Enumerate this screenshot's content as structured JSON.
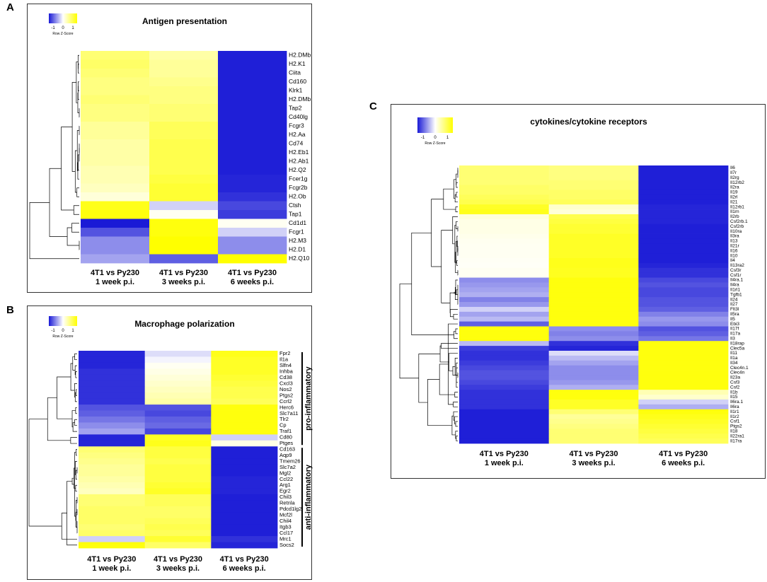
{
  "colors": {
    "low": "#1a1ad6",
    "mid": "#ffffff",
    "high": "#ffff00",
    "tree": "#000000"
  },
  "panels": [
    {
      "letter": "A"
    },
    {
      "letter": "B"
    },
    {
      "letter": "C"
    }
  ],
  "chart_data": [
    {
      "panel": "A",
      "type": "heatmap",
      "title": "Antigen presentation",
      "legend": {
        "ticks": [
          "-1",
          "0",
          "1"
        ],
        "label": "Row Z-Score"
      },
      "columns": [
        "4T1 vs Py230|1 week p.i.",
        "4T1 vs Py230|3 weeks p.i.",
        "4T1 vs Py230|6 weeks p.i."
      ],
      "rows": [
        "H2.DMb",
        "H2.K1",
        "Ciita",
        "Cd160",
        "Klrk1",
        "H2.DMb",
        "Tap2",
        "Cd40lg",
        "Fcgr3",
        "H2.Aa",
        "Cd74",
        "H2.Eb1",
        "H2.Ab1",
        "H2.Q2",
        "Fcer1g",
        "Fcgr2b",
        "H2.Ob",
        "Ctsh",
        "Tap1",
        "Cd1d1",
        "Fcgr1",
        "H2.M3",
        "H2.D1",
        "H2.Q10"
      ],
      "values": [
        [
          0.55,
          0.35,
          -0.98
        ],
        [
          0.6,
          0.4,
          -0.98
        ],
        [
          0.55,
          0.4,
          -0.98
        ],
        [
          0.5,
          0.45,
          -0.98
        ],
        [
          0.5,
          0.5,
          -0.98
        ],
        [
          0.55,
          0.5,
          -0.98
        ],
        [
          0.5,
          0.55,
          -0.98
        ],
        [
          0.5,
          0.55,
          -0.98
        ],
        [
          0.4,
          0.65,
          -0.98
        ],
        [
          0.4,
          0.65,
          -0.98
        ],
        [
          0.35,
          0.7,
          -0.98
        ],
        [
          0.35,
          0.7,
          -0.98
        ],
        [
          0.35,
          0.7,
          -0.98
        ],
        [
          0.3,
          0.7,
          -0.98
        ],
        [
          0.3,
          0.75,
          -0.95
        ],
        [
          0.25,
          0.8,
          -0.95
        ],
        [
          0.15,
          0.8,
          -0.9
        ],
        [
          0.9,
          -0.2,
          -0.8
        ],
        [
          0.95,
          0.05,
          -0.85
        ],
        [
          -1.0,
          0.95,
          0.05
        ],
        [
          -0.75,
          0.95,
          -0.2
        ],
        [
          -0.5,
          1.0,
          -0.5
        ],
        [
          -0.5,
          1.0,
          -0.5
        ],
        [
          -0.4,
          -0.7,
          1.0
        ]
      ]
    },
    {
      "panel": "B",
      "type": "heatmap",
      "title": "Macrophage polarization",
      "legend": {
        "ticks": [
          "-1",
          "0",
          "1"
        ],
        "label": "Row Z-Score"
      },
      "columns": [
        "4T1 vs Py230|1 week p.i.",
        "4T1 vs Py230|3 weeks p.i.",
        "4T1 vs Py230|6 weeks p.i."
      ],
      "rows": [
        "Fpr2",
        "Il1a",
        "Slfn4",
        "Inhba",
        "Cd38",
        "Cxcl3",
        "Nos2",
        "Ptgs2",
        "Ccrl2",
        "Herc6",
        "Slc7a11",
        "Tlr2",
        "Cp",
        "Traf1",
        "Cd80",
        "Ptges",
        "Cd163",
        "Aqp9",
        "Tmem26",
        "Slc7a2",
        "Mgl2",
        "Ccl22",
        "Arg1",
        "Egr2",
        "Chil3",
        "Retnla",
        "Pdcd1lg2",
        "Mcf2l",
        "Chil4",
        "Itgb3",
        "Ccl17",
        "Mrc1",
        "Socs2"
      ],
      "values": [
        [
          -0.95,
          -0.15,
          0.9
        ],
        [
          -0.95,
          -0.05,
          0.85
        ],
        [
          -0.95,
          0.05,
          0.85
        ],
        [
          -0.9,
          0.1,
          0.85
        ],
        [
          -0.9,
          0.15,
          0.8
        ],
        [
          -0.9,
          0.2,
          0.75
        ],
        [
          -0.9,
          0.25,
          0.7
        ],
        [
          -0.9,
          0.3,
          0.7
        ],
        [
          -0.9,
          0.35,
          0.65
        ],
        [
          -0.75,
          -0.75,
          0.95
        ],
        [
          -0.7,
          -0.8,
          0.95
        ],
        [
          -0.6,
          -0.7,
          0.95
        ],
        [
          -0.5,
          -0.65,
          0.95
        ],
        [
          -0.4,
          -0.8,
          0.95
        ],
        [
          -0.95,
          0.85,
          -0.2
        ],
        [
          -0.95,
          0.9,
          0.1
        ],
        [
          0.55,
          0.75,
          -0.98
        ],
        [
          0.5,
          0.75,
          -0.98
        ],
        [
          0.45,
          0.7,
          -0.98
        ],
        [
          0.4,
          0.75,
          -0.98
        ],
        [
          0.4,
          0.75,
          -0.98
        ],
        [
          0.35,
          0.75,
          -0.95
        ],
        [
          0.3,
          0.8,
          -0.95
        ],
        [
          0.25,
          0.85,
          -0.95
        ],
        [
          0.55,
          0.65,
          -0.98
        ],
        [
          0.55,
          0.65,
          -0.98
        ],
        [
          0.6,
          0.6,
          -0.98
        ],
        [
          0.6,
          0.6,
          -0.98
        ],
        [
          0.6,
          0.65,
          -0.98
        ],
        [
          0.55,
          0.7,
          -0.98
        ],
        [
          0.6,
          0.65,
          -0.98
        ],
        [
          -0.2,
          0.8,
          -0.9
        ],
        [
          0.95,
          0.6,
          -0.95
        ]
      ],
      "groups": [
        {
          "label": "pro-inflammatory"
        },
        {
          "label": "anti-inflammatory"
        }
      ]
    },
    {
      "panel": "C",
      "type": "heatmap",
      "title": "cytokines/cytokine receptors",
      "legend": {
        "ticks": [
          "-1",
          "0",
          "1"
        ],
        "label": "Row Z-Score"
      },
      "columns": [
        "4T1 vs Py230|1 week p.i.",
        "4T1 vs Py230|3 weeks p.i.",
        "4T1 vs Py230|6 weeks p.i."
      ],
      "rows": [
        "Il6",
        "Il7r",
        "Il2rg",
        "Il12rb2",
        "Il2ra",
        "Il19",
        "Il2rl",
        "Il21",
        "Il12rb1",
        "Il1rn",
        "Il2rb",
        "Csf2rb.1",
        "Csf2rb",
        "Il10ra",
        "Il3ra",
        "Il13",
        "Il21r",
        "Il16",
        "Il10",
        "Il4",
        "Il13ra2",
        "Csf3r",
        "Csf1r",
        "Il4ra.1",
        "Il4ra",
        "Il1rl1",
        "Tgfb1",
        "Il24",
        "Il27",
        "Flt3l",
        "Il5ra",
        "Il5",
        "Ebi3",
        "Il17f",
        "Il17a",
        "Il3",
        "Il18rap",
        "Clec5a",
        "Il11",
        "Il1a",
        "Il34",
        "Clec4n.1",
        "Clec4n",
        "Il23a",
        "Csf3",
        "Csf2",
        "Il1b",
        "Il15",
        "Il6ra.1",
        "Il6ra",
        "Il1r1",
        "Il1r2",
        "Csf1",
        "Ptgs2",
        "Il18",
        "Il22ra1",
        "Il17ra"
      ],
      "values": [
        [
          0.55,
          0.5,
          -0.98
        ],
        [
          0.55,
          0.5,
          -0.98
        ],
        [
          0.55,
          0.5,
          -0.98
        ],
        [
          0.55,
          0.55,
          -0.98
        ],
        [
          0.6,
          0.55,
          -0.98
        ],
        [
          0.6,
          0.6,
          -0.98
        ],
        [
          0.65,
          0.6,
          -0.98
        ],
        [
          0.7,
          0.65,
          -0.98
        ],
        [
          0.85,
          0.2,
          -0.95
        ],
        [
          0.9,
          0.15,
          -0.95
        ],
        [
          0.15,
          0.7,
          -0.95
        ],
        [
          0.1,
          0.75,
          -0.95
        ],
        [
          0.1,
          0.8,
          -0.98
        ],
        [
          0.1,
          0.8,
          -0.98
        ],
        [
          0.08,
          0.85,
          -0.98
        ],
        [
          0.06,
          0.85,
          -0.98
        ],
        [
          0.05,
          0.85,
          -0.98
        ],
        [
          0.05,
          0.85,
          -0.98
        ],
        [
          0.05,
          0.85,
          -0.98
        ],
        [
          0.04,
          0.9,
          -0.98
        ],
        [
          0.03,
          0.9,
          -0.95
        ],
        [
          0.05,
          0.88,
          -0.9
        ],
        [
          0.05,
          0.88,
          -0.9
        ],
        [
          -0.5,
          0.95,
          -0.8
        ],
        [
          -0.45,
          0.95,
          -0.75
        ],
        [
          -0.4,
          0.95,
          -0.8
        ],
        [
          -0.35,
          0.95,
          -0.8
        ],
        [
          -0.55,
          0.95,
          -0.75
        ],
        [
          -0.45,
          0.95,
          -0.75
        ],
        [
          -0.2,
          0.95,
          -0.7
        ],
        [
          -0.4,
          0.95,
          -0.55
        ],
        [
          -0.3,
          0.95,
          -0.45
        ],
        [
          -0.7,
          0.95,
          -0.5
        ],
        [
          0.95,
          -0.5,
          -0.75
        ],
        [
          0.95,
          -0.55,
          -0.7
        ],
        [
          0.95,
          -0.5,
          -0.6
        ],
        [
          -0.3,
          -0.9,
          0.95
        ],
        [
          -0.85,
          -0.95,
          0.95
        ],
        [
          -0.9,
          -0.15,
          0.95
        ],
        [
          -0.9,
          -0.3,
          0.95
        ],
        [
          -0.85,
          -0.4,
          0.95
        ],
        [
          -0.8,
          -0.5,
          0.95
        ],
        [
          -0.75,
          -0.5,
          0.95
        ],
        [
          -0.75,
          -0.5,
          0.95
        ],
        [
          -0.8,
          -0.45,
          0.95
        ],
        [
          -0.85,
          -0.35,
          0.95
        ],
        [
          -0.9,
          0.95,
          0.3
        ],
        [
          -0.9,
          0.95,
          0.2
        ],
        [
          -0.9,
          0.85,
          -0.2
        ],
        [
          -0.9,
          0.85,
          -0.35
        ],
        [
          -0.98,
          0.55,
          0.95
        ],
        [
          -0.98,
          0.4,
          0.9
        ],
        [
          -0.98,
          0.45,
          0.85
        ],
        [
          -0.98,
          0.5,
          0.8
        ],
        [
          -0.98,
          0.55,
          0.75
        ],
        [
          -0.98,
          0.55,
          0.7
        ],
        [
          -0.98,
          0.55,
          0.65
        ]
      ]
    }
  ]
}
